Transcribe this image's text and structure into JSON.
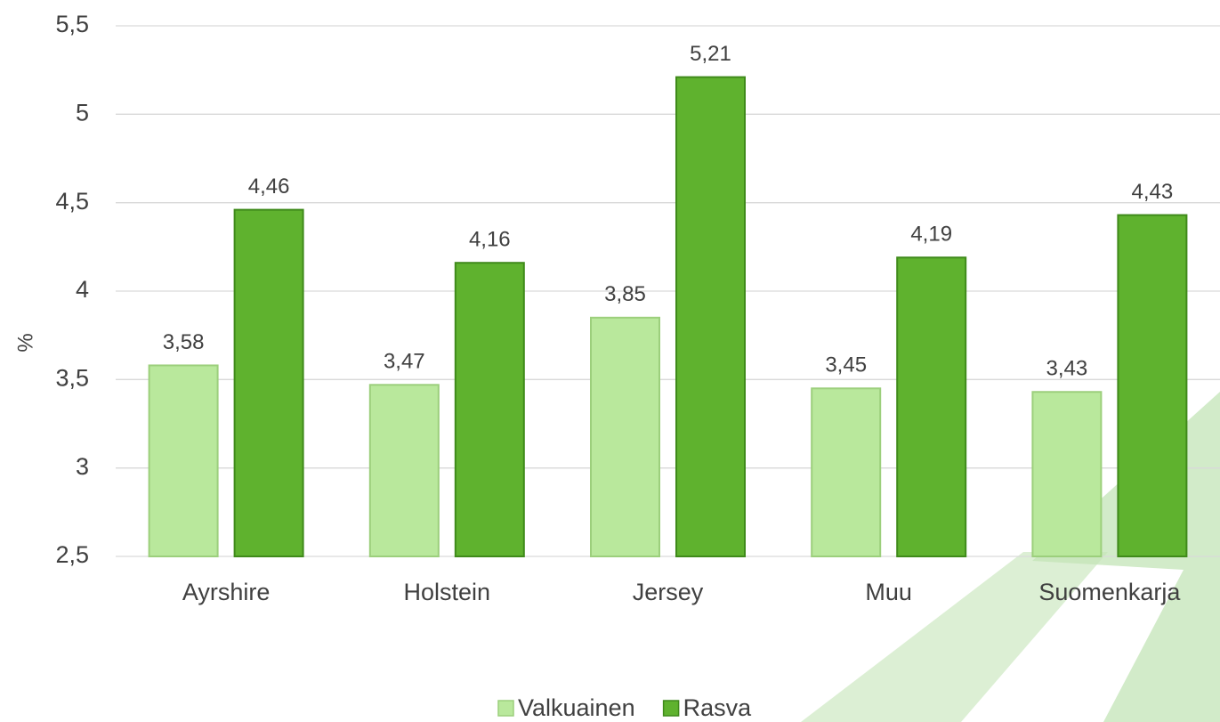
{
  "chart_data": {
    "type": "bar",
    "y_label": "%",
    "categories": [
      "Ayrshire",
      "Holstein",
      "Jersey",
      "Muu",
      "Suomenkarja"
    ],
    "series": [
      {
        "name": "Valkuainen",
        "color": "#b9e89c",
        "values": [
          3.58,
          3.47,
          3.85,
          3.45,
          3.43
        ],
        "value_labels": [
          "3,58",
          "3,47",
          "3,85",
          "3,45",
          "3,43"
        ]
      },
      {
        "name": "Rasva",
        "color": "#5fb22e",
        "values": [
          4.46,
          4.16,
          5.21,
          4.19,
          4.43
        ],
        "value_labels": [
          "4,46",
          "4,16",
          "5,21",
          "4,19",
          "4,43"
        ]
      }
    ],
    "ylim": [
      2.5,
      5.5
    ],
    "yticks": [
      {
        "value": 2.5,
        "label": "2,5"
      },
      3,
      {
        "value": 3.5,
        "label": "3,5"
      },
      4,
      {
        "value": 4.5,
        "label": "4,5"
      },
      5,
      {
        "value": 5.5,
        "label": "5,5"
      }
    ],
    "grid": true,
    "legend": "bottom"
  }
}
